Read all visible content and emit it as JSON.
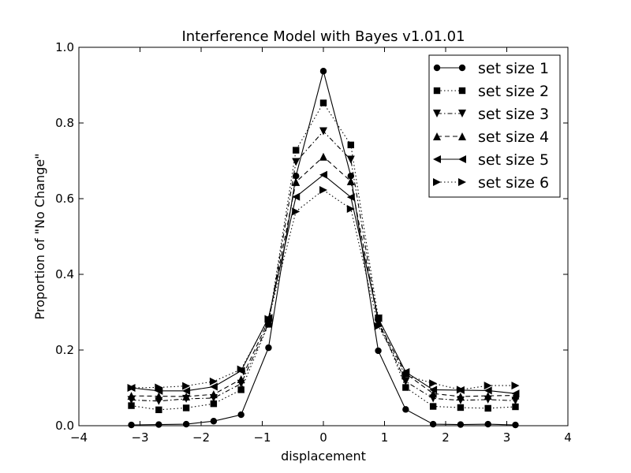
{
  "chart_data": {
    "type": "line",
    "title": "Interference Model with Bayes v1.01.01",
    "xlabel": "displacement",
    "ylabel": "Proportion of \"No Change\"",
    "xlim": [
      -4,
      4
    ],
    "ylim": [
      0.0,
      1.0
    ],
    "xticks": [
      "−4",
      "−3",
      "−2",
      "−1",
      "0",
      "1",
      "2",
      "3",
      "4"
    ],
    "yticks": [
      "0.0",
      "0.2",
      "0.4",
      "0.6",
      "0.8",
      "1.0"
    ],
    "grid": false,
    "legend_position": "top-right",
    "x": [
      -3.1416,
      -2.6928,
      -2.244,
      -1.7952,
      -1.3464,
      -0.8976,
      -0.4488,
      0.0,
      0.4488,
      0.8976,
      1.3464,
      1.7952,
      2.244,
      2.6928,
      3.1416
    ],
    "series": [
      {
        "name": "set size 1",
        "marker": "circle",
        "dash": "solid",
        "values": [
          0.002,
          0.003,
          0.004,
          0.012,
          0.029,
          0.206,
          0.66,
          0.937,
          0.66,
          0.198,
          0.043,
          0.004,
          0.003,
          0.004,
          0.002
        ]
      },
      {
        "name": "set size 2",
        "marker": "square",
        "dash": "dotted",
        "values": [
          0.053,
          0.042,
          0.047,
          0.058,
          0.095,
          0.268,
          0.728,
          0.853,
          0.742,
          0.285,
          0.101,
          0.051,
          0.048,
          0.046,
          0.05
        ]
      },
      {
        "name": "set size 3",
        "marker": "triangle-down",
        "dash": "dashdot",
        "values": [
          0.068,
          0.065,
          0.071,
          0.073,
          0.111,
          0.27,
          0.697,
          0.778,
          0.703,
          0.271,
          0.117,
          0.072,
          0.067,
          0.069,
          0.066
        ]
      },
      {
        "name": "set size 4",
        "marker": "triangle-up",
        "dash": "dashed",
        "values": [
          0.079,
          0.078,
          0.077,
          0.083,
          0.123,
          0.278,
          0.644,
          0.711,
          0.646,
          0.272,
          0.138,
          0.085,
          0.077,
          0.079,
          0.08
        ]
      },
      {
        "name": "set size 5",
        "marker": "triangle-left",
        "dash": "solid",
        "values": [
          0.1,
          0.092,
          0.092,
          0.103,
          0.145,
          0.285,
          0.605,
          0.663,
          0.604,
          0.284,
          0.142,
          0.095,
          0.094,
          0.093,
          0.085
        ]
      },
      {
        "name": "set size 6",
        "marker": "triangle-right",
        "dash": "dotted",
        "values": [
          0.1,
          0.101,
          0.105,
          0.117,
          0.149,
          0.282,
          0.566,
          0.623,
          0.573,
          0.263,
          0.133,
          0.112,
          0.095,
          0.106,
          0.106
        ]
      }
    ]
  }
}
